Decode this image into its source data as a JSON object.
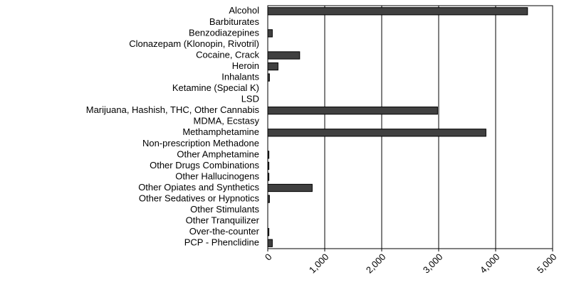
{
  "chart_data": {
    "type": "hbar",
    "categories": [
      "Alcohol",
      "Barbiturates",
      "Benzodiazepines",
      "Clonazepam (Klonopin, Rivotril)",
      "Cocaine, Crack",
      "Heroin",
      "Inhalants",
      "Ketamine (Special K)",
      "LSD",
      "Marijuana, Hashish, THC, Other Cannabis",
      "MDMA, Ecstasy",
      "Methamphetamine",
      "Non-prescription Methadone",
      "Other Amphetamine",
      "Other Drugs Combinations",
      "Other Hallucinogens",
      "Other Opiates and Synthetics",
      "Other Sedatives or Hypnotics",
      "Other Stimulants",
      "Other Tranquilizer",
      "Over-the-counter",
      "PCP - Phenclidine"
    ],
    "values": [
      4560,
      0,
      80,
      0,
      560,
      180,
      30,
      0,
      0,
      2980,
      0,
      3830,
      0,
      20,
      20,
      20,
      780,
      30,
      0,
      0,
      20,
      80
    ],
    "color": "#404040",
    "xlim": [
      0,
      5000
    ],
    "xticks": [
      0,
      {
        "value": 1000,
        "label": "1,000"
      },
      {
        "value": 2000,
        "label": "2,000"
      },
      {
        "value": 3000,
        "label": "3,000"
      },
      {
        "value": 4000,
        "label": "4,000"
      },
      {
        "value": 5000,
        "label": "5,000"
      }
    ],
    "grid": true
  }
}
